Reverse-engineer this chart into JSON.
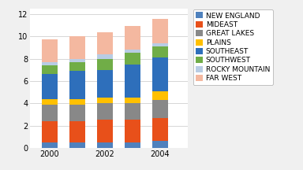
{
  "years": [
    2000,
    2001,
    2002,
    2003,
    2004
  ],
  "regions": [
    "NEW ENGLAND",
    "MIDEAST",
    "GREAT LAKES",
    "PLAINS",
    "SOUTHEAST",
    "SOUTHWEST",
    "ROCKY MOUNTAIN",
    "FAR WEST"
  ],
  "colors": [
    "#4f81bd",
    "#e8501a",
    "#888888",
    "#ffc000",
    "#2e6fbb",
    "#70ad47",
    "#b8cce4",
    "#f4b8a0"
  ],
  "data": {
    "NEW ENGLAND": [
      0.5,
      0.5,
      0.5,
      0.5,
      0.6
    ],
    "MIDEAST": [
      1.9,
      1.9,
      2.0,
      2.0,
      2.1
    ],
    "GREAT LAKES": [
      1.5,
      1.5,
      1.5,
      1.5,
      1.6
    ],
    "PLAINS": [
      0.5,
      0.5,
      0.5,
      0.5,
      0.8
    ],
    "SOUTHEAST": [
      2.2,
      2.5,
      2.5,
      3.0,
      3.0
    ],
    "SOUTHWEST": [
      0.8,
      0.8,
      1.0,
      1.0,
      1.0
    ],
    "ROCKY MOUNTAIN": [
      0.3,
      0.3,
      0.4,
      0.3,
      0.3
    ],
    "FAR WEST": [
      2.0,
      2.0,
      2.0,
      2.1,
      2.2
    ]
  },
  "ylim": [
    0,
    12.5
  ],
  "yticks": [
    0,
    2,
    4,
    6,
    8,
    10,
    12
  ],
  "bg_color": "#f0f0f0",
  "plot_bg": "#ffffff",
  "legend_fontsize": 6.5,
  "tick_fontsize": 7,
  "bar_width": 0.55
}
